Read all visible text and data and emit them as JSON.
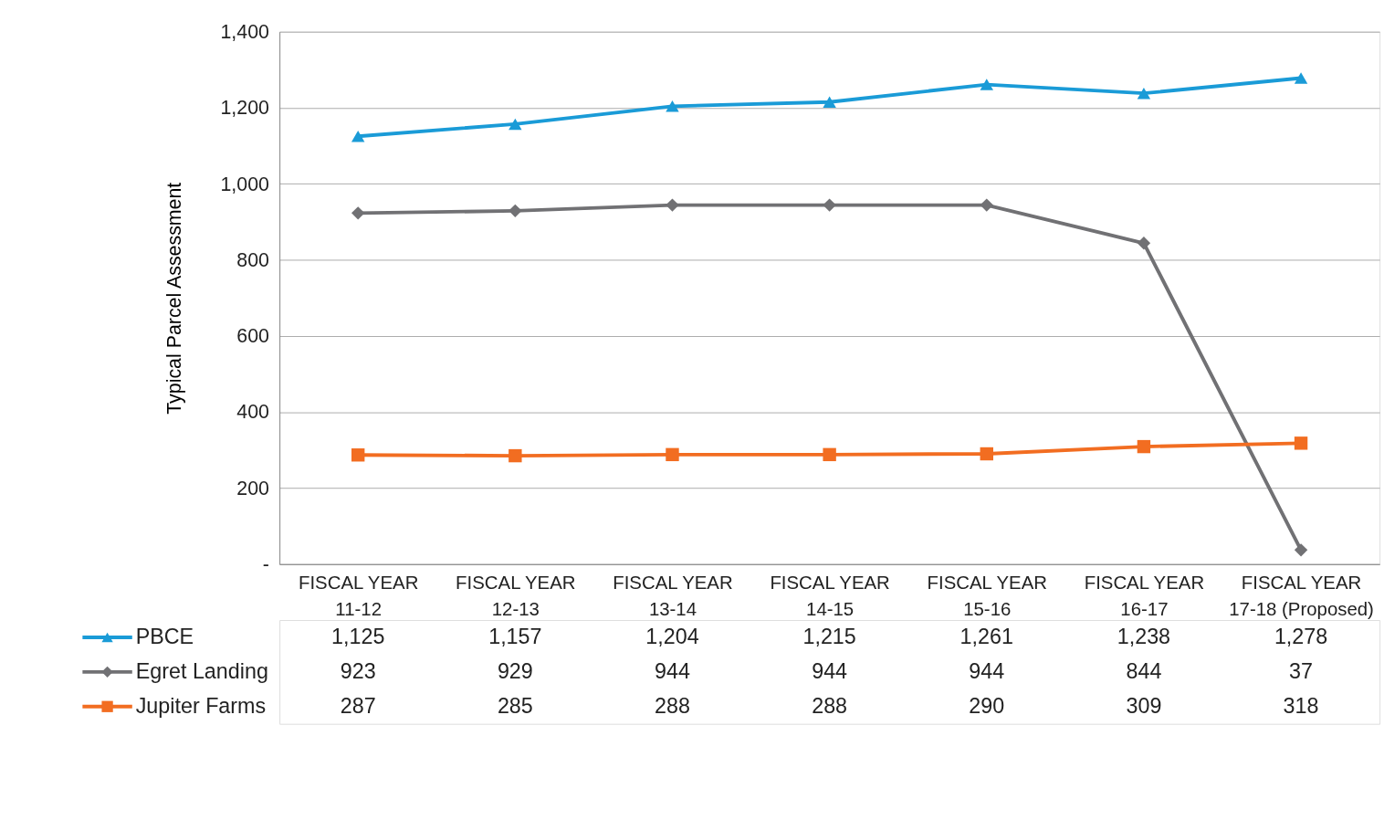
{
  "chart_data": {
    "type": "line",
    "ylabel": "Typical Parcel Assessment",
    "categories": [
      "FISCAL YEAR 11-12",
      "FISCAL YEAR 12-13",
      "FISCAL YEAR 13-14",
      "FISCAL YEAR 14-15",
      "FISCAL YEAR 15-16",
      "FISCAL YEAR 16-17",
      "FISCAL YEAR 17-18 (Proposed)"
    ],
    "series": [
      {
        "name": "PBCE",
        "color": "#1a9bd7",
        "marker": "triangle",
        "values": [
          1125,
          1157,
          1204,
          1215,
          1261,
          1238,
          1278
        ],
        "value_labels": [
          "1,125",
          "1,157",
          "1,204",
          "1,215",
          "1,261",
          "1,238",
          "1,278"
        ]
      },
      {
        "name": "Egret Landing",
        "color": "#717174",
        "marker": "diamond",
        "values": [
          923,
          929,
          944,
          944,
          944,
          844,
          37
        ],
        "value_labels": [
          "923",
          "929",
          "944",
          "944",
          "944",
          "844",
          "37"
        ]
      },
      {
        "name": "Jupiter Farms",
        "color": "#f26d21",
        "marker": "square",
        "values": [
          287,
          285,
          288,
          288,
          290,
          309,
          318
        ],
        "value_labels": [
          "287",
          "285",
          "288",
          "288",
          "290",
          "309",
          "318"
        ]
      }
    ],
    "ylim": [
      0,
      1400
    ],
    "yticks": [
      {
        "value": 0,
        "label": "-"
      },
      {
        "value": 200,
        "label": "200"
      },
      {
        "value": 400,
        "label": "400"
      },
      {
        "value": 600,
        "label": "600"
      },
      {
        "value": 800,
        "label": "800"
      },
      {
        "value": 1000,
        "label": "1,000"
      },
      {
        "value": 1200,
        "label": "1,200"
      },
      {
        "value": 1400,
        "label": "1,400"
      }
    ],
    "grid": "y",
    "legend": "bottom left",
    "line_style": "solid"
  }
}
